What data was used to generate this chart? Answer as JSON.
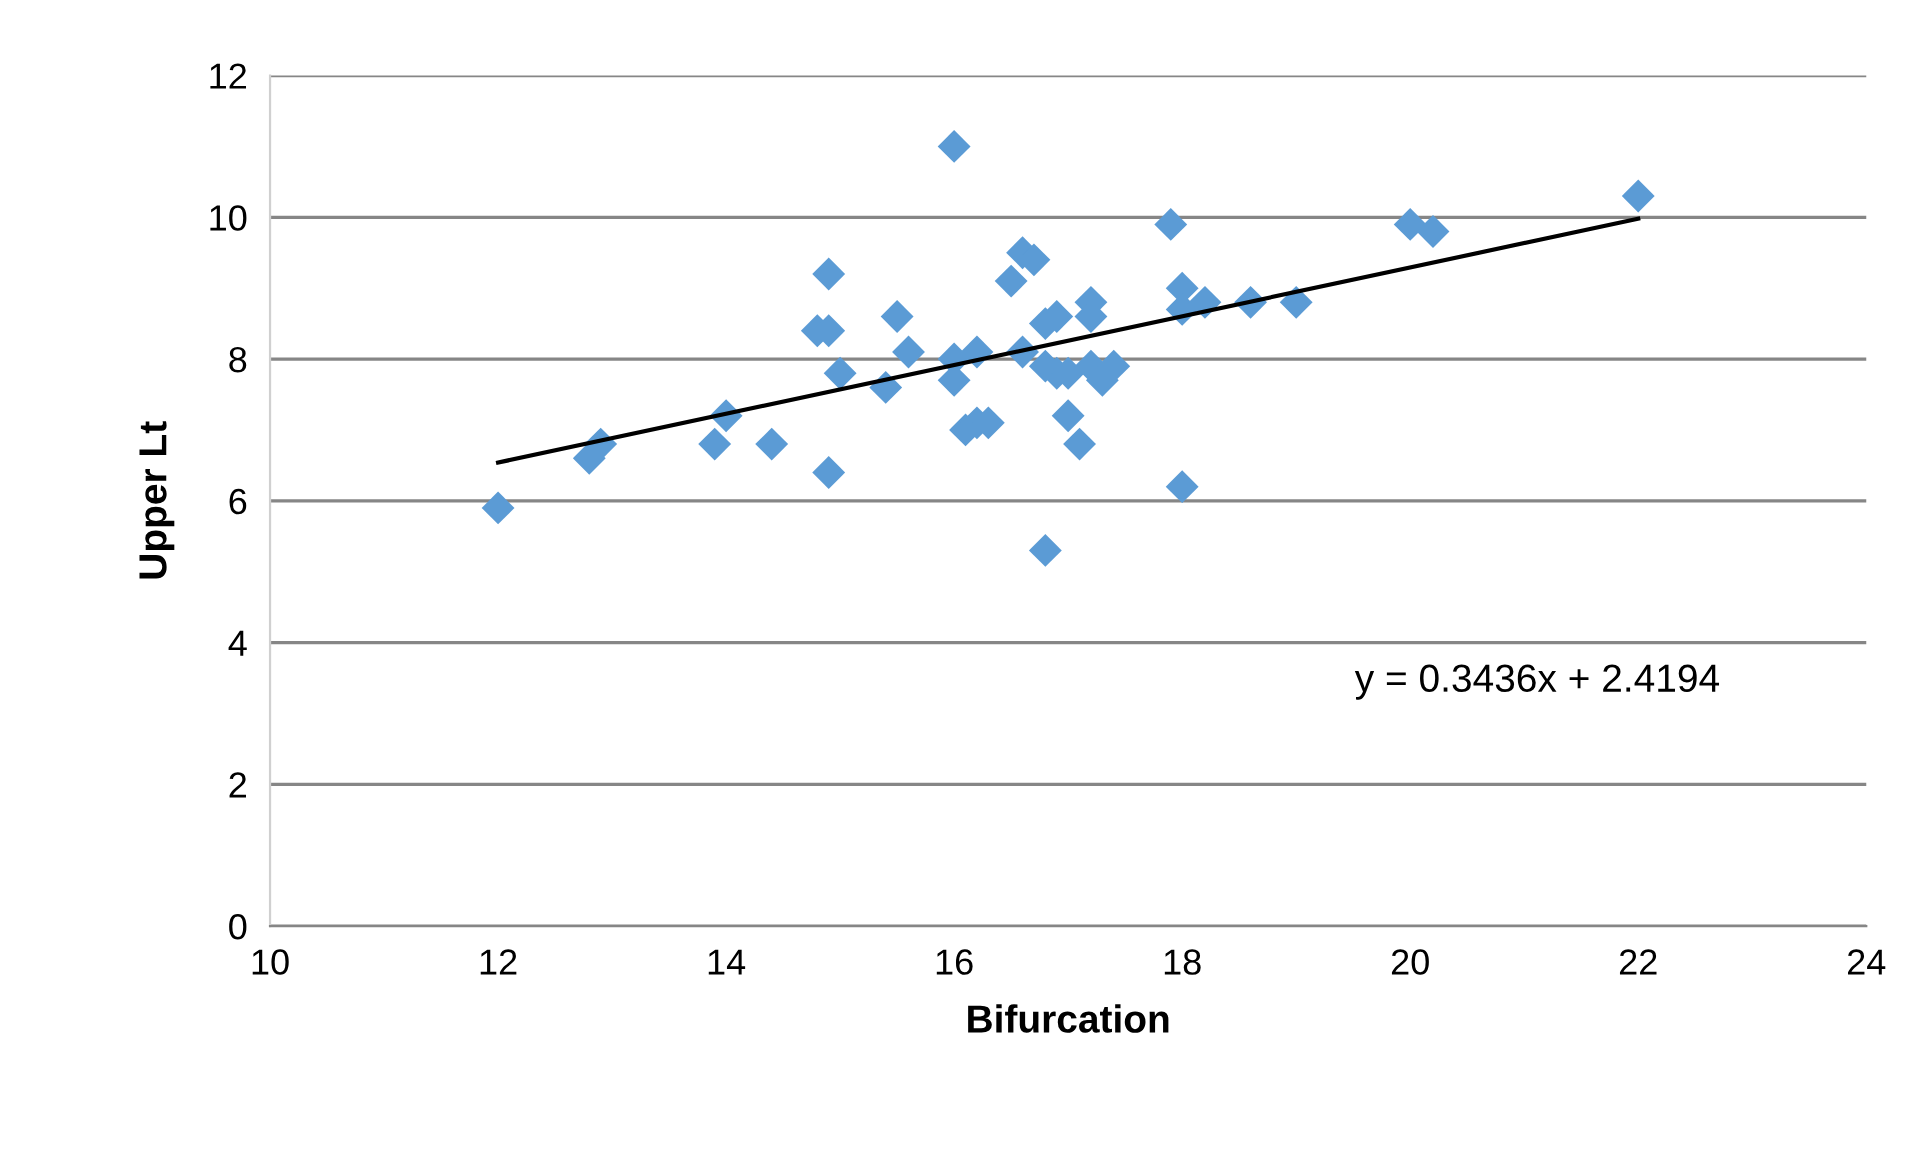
{
  "chart_data": {
    "type": "scatter",
    "xlabel": "Bifurcation",
    "ylabel": "Upper Lt",
    "xlim": [
      10,
      24
    ],
    "xticks": [
      10,
      12,
      14,
      16,
      18,
      20,
      22,
      24
    ],
    "ylim": [
      0,
      12
    ],
    "yticks": [
      0,
      2,
      4,
      6,
      8,
      10,
      12
    ],
    "grid": "y",
    "legend": false,
    "marker": "diamond",
    "series": [
      {
        "color": "#5b9bd5",
        "x": [
          12,
          12.8,
          12.9,
          13.9,
          14,
          14.4,
          14.8,
          14.9,
          14.9,
          14.9,
          15,
          15.4,
          15.5,
          15.6,
          16,
          16,
          16,
          16.1,
          16.2,
          16.2,
          16.3,
          16.5,
          16.6,
          16.6,
          16.7,
          16.8,
          16.8,
          16.8,
          16.9,
          16.9,
          17,
          17,
          17.1,
          17.2,
          17.2,
          17.2,
          17.3,
          17.4,
          17.9,
          18,
          18,
          18,
          18.2,
          18.6,
          19,
          20,
          20.2,
          22
        ],
        "values": [
          5.9,
          6.6,
          6.8,
          6.8,
          7.2,
          6.8,
          8.4,
          9.2,
          8.4,
          6.4,
          7.8,
          7.6,
          8.6,
          8.1,
          11,
          8,
          7.7,
          7.0,
          8.1,
          7.1,
          7.1,
          9.1,
          9.5,
          8.1,
          9.4,
          8.5,
          7.9,
          5.3,
          8.6,
          7.8,
          7.8,
          7.2,
          6.8,
          8.8,
          8.6,
          7.9,
          7.7,
          7.9,
          9.9,
          9.0,
          8.7,
          6.2,
          8.8,
          8.8,
          8.8,
          9.9,
          9.8,
          10.3
        ]
      },
      {
        "type": "line",
        "color": "#000000",
        "marker": "none",
        "x": [
          12,
          22
        ],
        "values": [
          6.54,
          9.98
        ]
      }
    ],
    "annotations": [
      "y = 0.3436x + 2.4194"
    ]
  }
}
